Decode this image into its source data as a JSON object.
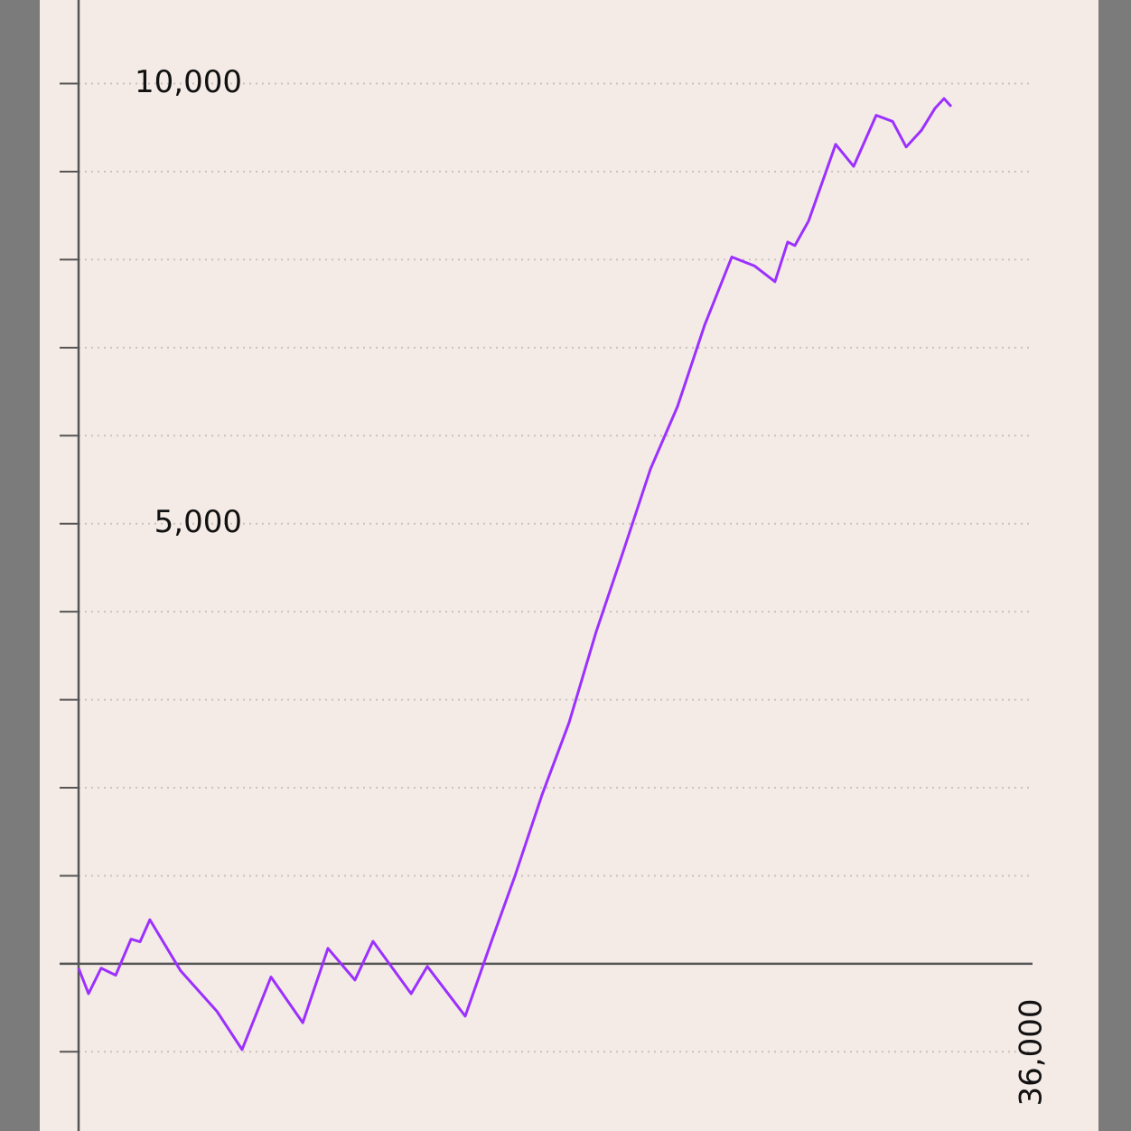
{
  "chart_data": {
    "type": "line",
    "x": [
      0,
      375,
      850,
      1400,
      1980,
      2320,
      2690,
      3850,
      5220,
      6170,
      7260,
      8460,
      9410,
      10430,
      11110,
      12550,
      13160,
      14590,
      15610,
      16470,
      17490,
      18510,
      19530,
      20560,
      21580,
      22600,
      23630,
      24650,
      25500,
      26280,
      26760,
      27030,
      27550,
      28570,
      29250,
      30100,
      30720,
      31230,
      31810,
      32320,
      32660,
      32930
    ],
    "series": [
      {
        "color": "#9b30ff",
        "values": [
          -50,
          -340,
          -50,
          -130,
          280,
          250,
          500,
          -80,
          -540,
          -975,
          -150,
          -670,
          175,
          -185,
          255,
          -340,
          -30,
          -595,
          280,
          1000,
          1920,
          2740,
          3770,
          4690,
          5620,
          6330,
          7260,
          8030,
          7930,
          7750,
          8200,
          8160,
          8440,
          9310,
          9060,
          9640,
          9570,
          9280,
          9470,
          9720,
          9830,
          9740
        ]
      }
    ],
    "xlim": [
      0,
      36000
    ],
    "xticks": [
      {
        "value": 36000,
        "label": "36,000"
      }
    ],
    "ylim": [
      -1900,
      10950
    ],
    "yticks": [
      {
        "value": 5000,
        "label": "5,000"
      },
      {
        "value": 10000,
        "label": "10,000"
      }
    ],
    "grid_yticks": [
      -1000,
      0,
      1000,
      2000,
      3000,
      4000,
      5000,
      6000,
      7000,
      8000,
      9000,
      10000
    ],
    "grid": true
  }
}
